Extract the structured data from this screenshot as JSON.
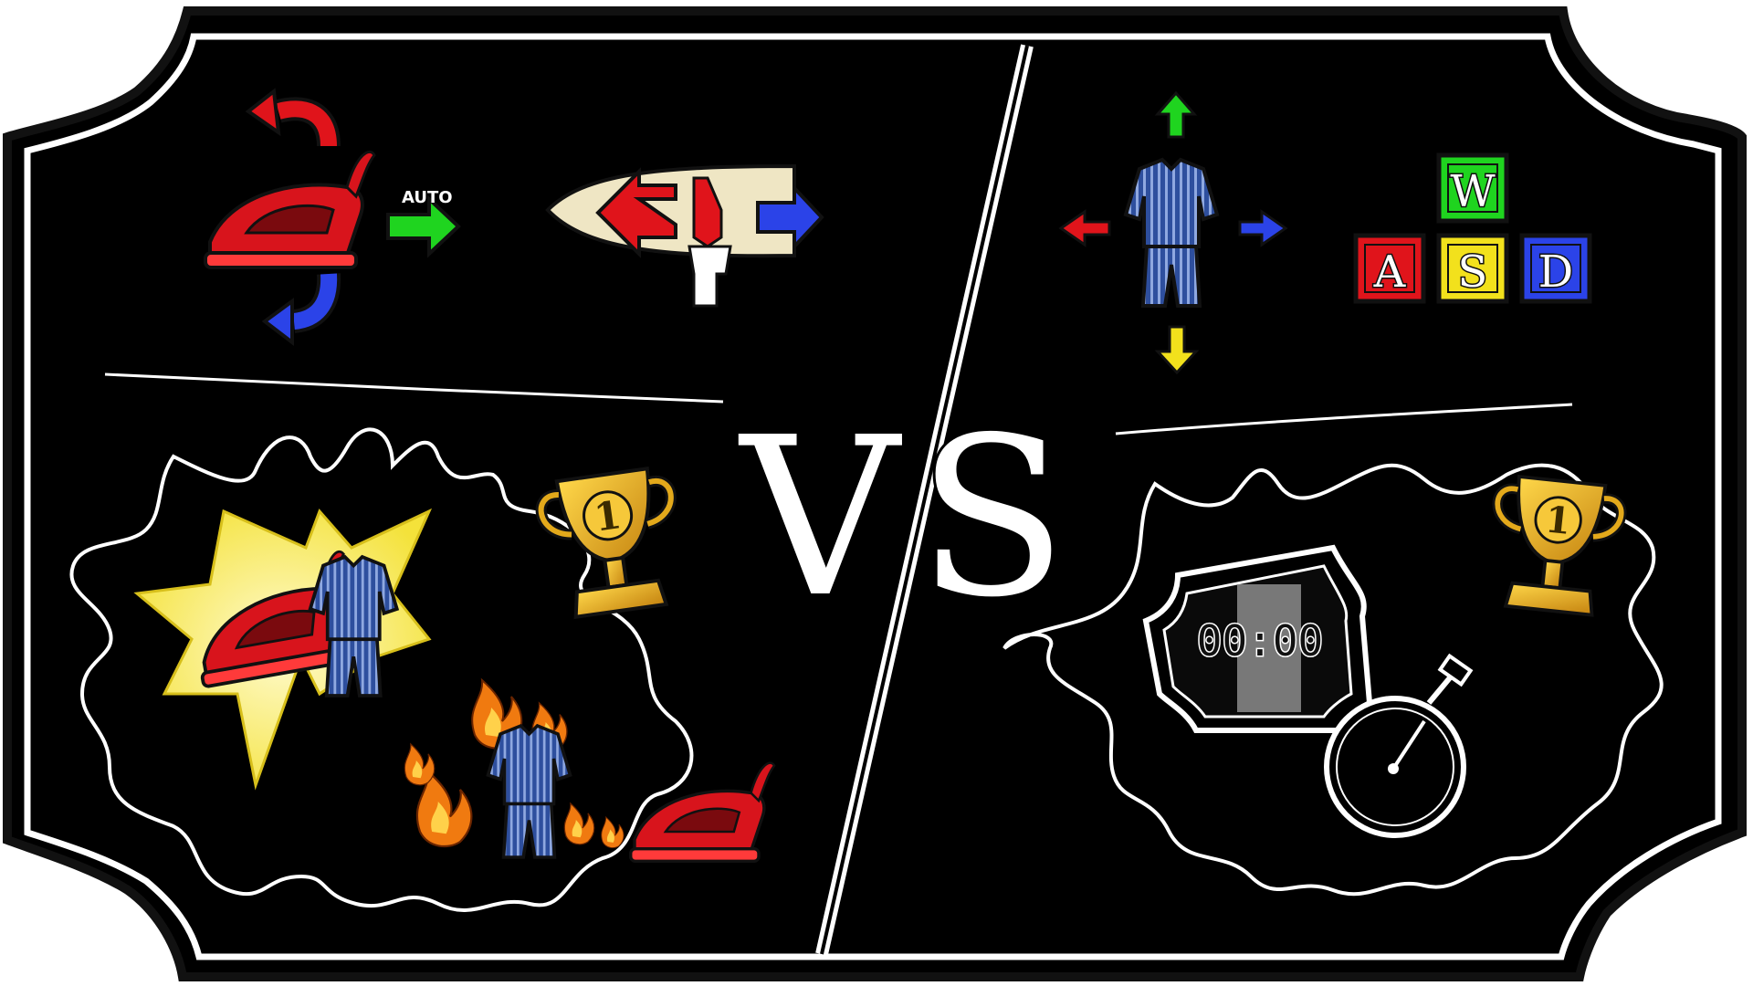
{
  "board": {
    "divider_text": "VS",
    "colors": {
      "board": "#000000",
      "outline": "#ffffff",
      "red": "#e0141b",
      "green": "#1fd41f",
      "blue": "#2b43e8",
      "yellow": "#f2e11c",
      "gold": "#e3a91b",
      "fire": "#f07a10",
      "pajama": "#2e4f9e"
    }
  },
  "left_panel": {
    "controls": {
      "auto_label": "AUTO",
      "icons": [
        "iron-icon",
        "rotate-left-arrow-icon",
        "rotate-right-arrow-icon",
        "auto-forward-arrow-icon",
        "ironing-board-icon",
        "hand-swipe-icon"
      ]
    },
    "outcomes": {
      "trophy_rank": "1",
      "icons": [
        "iron-icon",
        "pajamas-icon",
        "trophy-icon",
        "fire-icon",
        "burnt-pajamas-icon"
      ]
    }
  },
  "right_panel": {
    "controls": {
      "keys": [
        {
          "key": "W",
          "color": "#1fd41f"
        },
        {
          "key": "A",
          "color": "#e0141b"
        },
        {
          "key": "S",
          "color": "#f2e11c"
        },
        {
          "key": "D",
          "color": "#2b43e8"
        }
      ],
      "icons": [
        "pajamas-icon",
        "arrow-up-icon",
        "arrow-down-icon",
        "arrow-left-icon",
        "arrow-right-icon"
      ]
    },
    "outcomes": {
      "timer_display": "00:00",
      "trophy_rank": "1",
      "icons": [
        "digital-timer-icon",
        "stopwatch-icon",
        "trophy-icon"
      ]
    }
  }
}
